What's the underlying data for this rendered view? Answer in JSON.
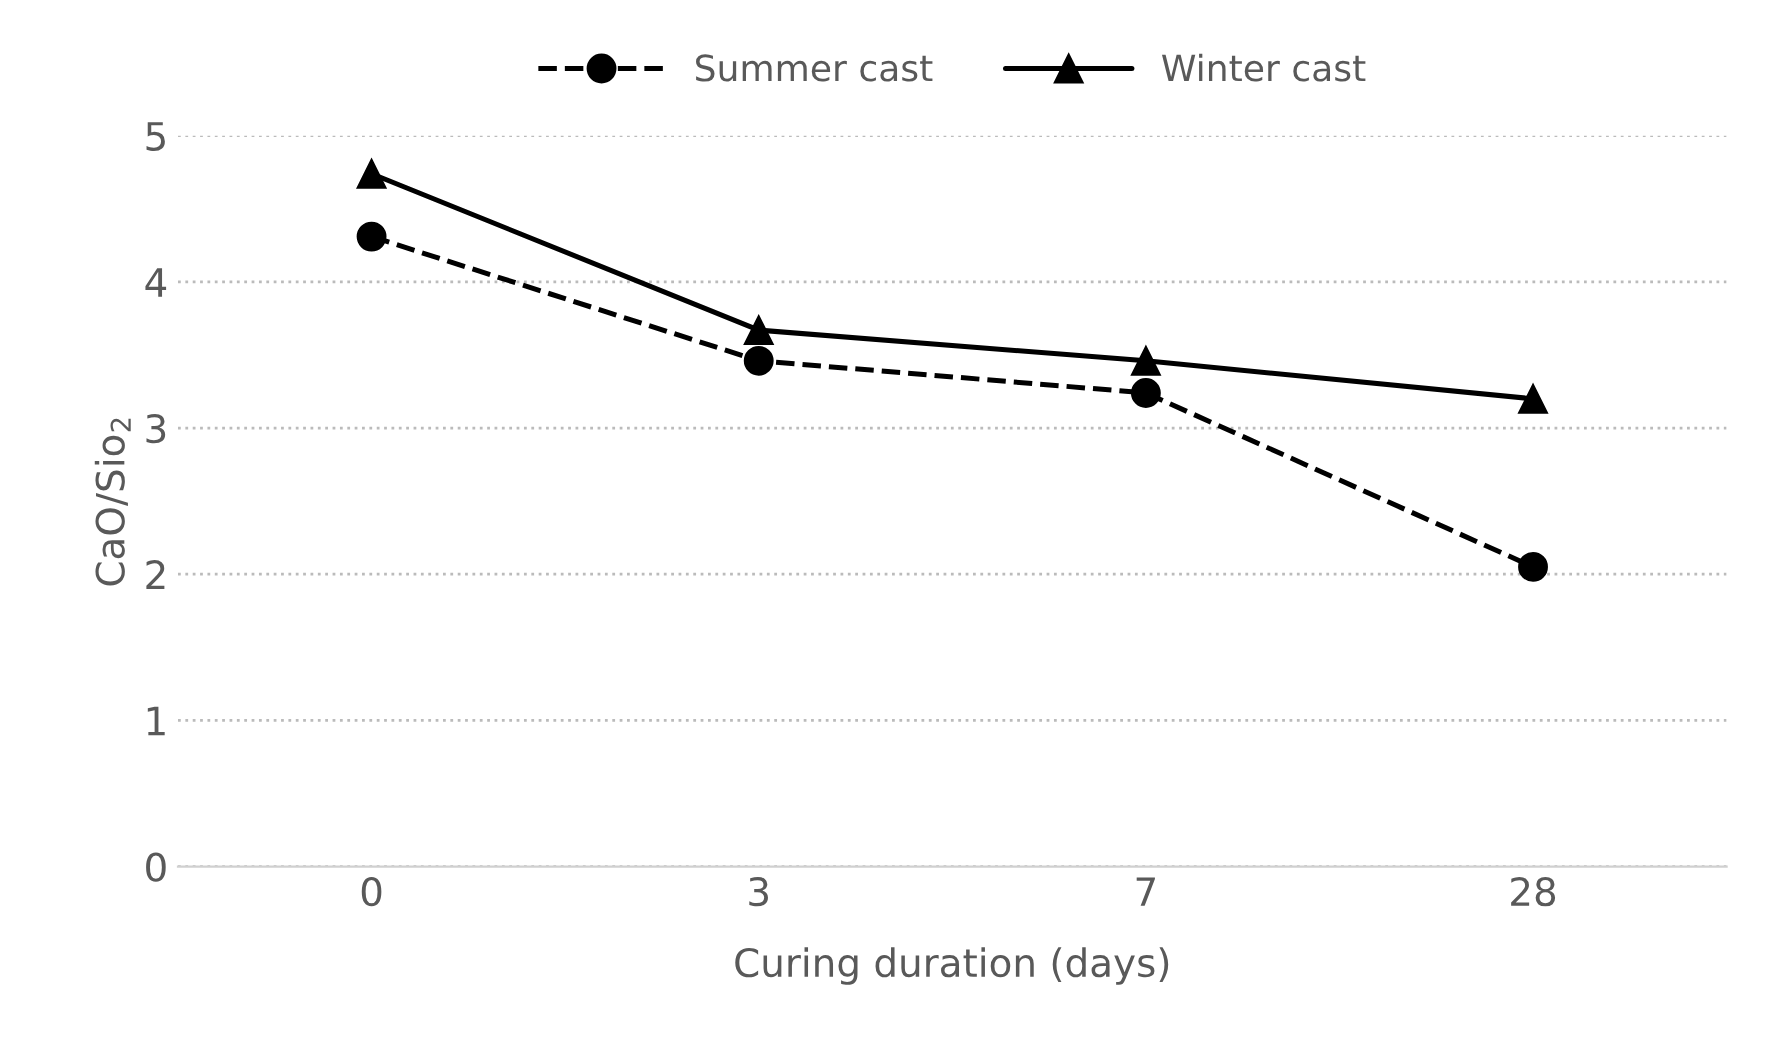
{
  "chart_data": {
    "type": "line",
    "xlabel": "Curing duration (days)",
    "ylabel": "CaO/Sio$_{2}$",
    "categories": [
      "0",
      "3",
      "7",
      "28"
    ],
    "series": [
      {
        "name": "Summer cast",
        "color": "#000000",
        "marker": "circle",
        "line_style": "dashed",
        "values": [
          4.31,
          3.46,
          3.24,
          2.05
        ]
      },
      {
        "name": "Winter cast",
        "color": "#000000",
        "marker": "triangle",
        "line_style": "solid",
        "values": [
          4.74,
          3.67,
          3.46,
          3.2
        ]
      }
    ],
    "ylim": [
      0,
      5
    ],
    "yticks": [
      0,
      1,
      2,
      3,
      4,
      5
    ],
    "grid": "y",
    "legend": "top"
  }
}
